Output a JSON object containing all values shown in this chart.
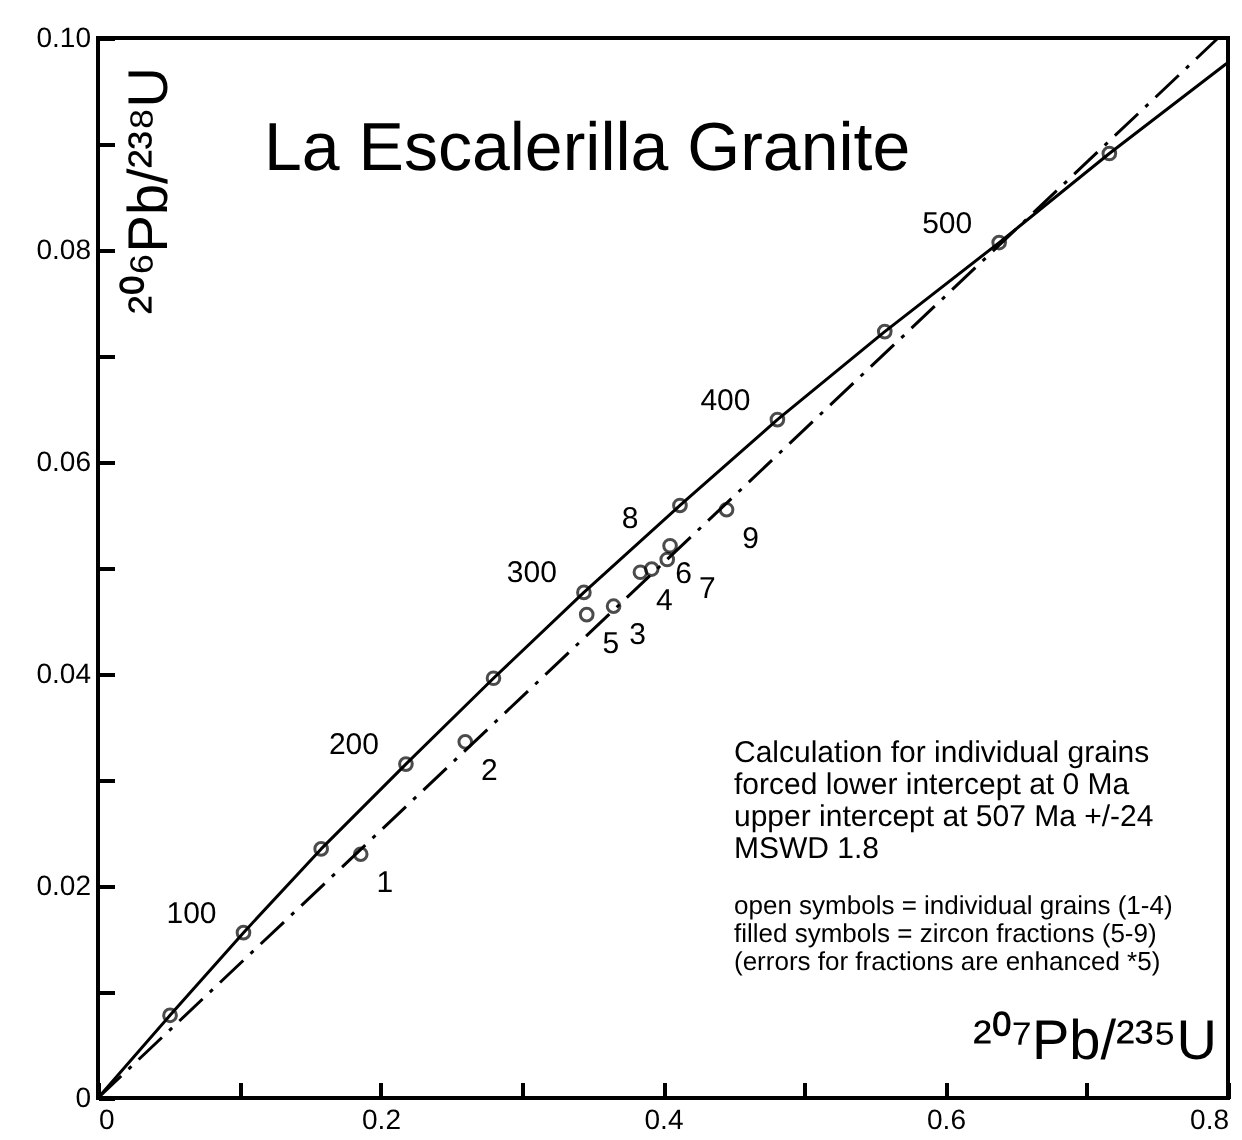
{
  "chart_data": {
    "type": "line",
    "title": "La Escalerilla Granite",
    "xlabel": "²⁰⁷Pb/²³⁵U",
    "ylabel": "²⁰⁶Pb/²³⁸U",
    "xlim": [
      0,
      0.8
    ],
    "ylim": [
      0,
      0.1
    ],
    "xticks": [
      0,
      {
        "value": 0.1,
        "label": null
      },
      0.2,
      {
        "value": 0.3,
        "label": null
      },
      0.4,
      {
        "value": 0.5,
        "label": null
      },
      0.6,
      {
        "value": 0.7,
        "label": null
      },
      0.8
    ],
    "yticks": [
      0,
      {
        "value": 0.01,
        "label": null
      },
      0.02,
      {
        "value": 0.03,
        "label": null
      },
      0.04,
      {
        "value": 0.05,
        "label": null
      },
      0.06,
      {
        "value": 0.07,
        "label": null
      },
      0.08,
      {
        "value": 0.09,
        "label": null
      },
      {
        "value": 0.1,
        "label": "0.10"
      }
    ],
    "grid": false,
    "series": [
      {
        "color": "#000000",
        "line_style": "solid",
        "x": [
          0,
          0.051,
          0.103,
          0.158,
          0.218,
          0.28,
          0.344,
          0.412,
          0.481,
          0.557,
          0.638,
          0.716,
          0.799
        ],
        "values": [
          0,
          0.0078,
          0.0156,
          0.0235,
          0.0315,
          0.0396,
          0.0477,
          0.0559,
          0.064,
          0.0723,
          0.0807,
          0.0891,
          0.0976
        ]
      },
      {
        "type": "scatter",
        "marker": "circle",
        "color": "#000000",
        "x": [
          0.051,
          0.103,
          0.158,
          0.218,
          0.28,
          0.344,
          0.412,
          0.481,
          0.557,
          0.638,
          0.716
        ],
        "values": [
          0.0078,
          0.0156,
          0.0235,
          0.0315,
          0.0396,
          0.0477,
          0.0559,
          0.064,
          0.0723,
          0.0807,
          0.0891
        ]
      },
      {
        "color": "#000000",
        "line_style": "dashed",
        "x": [
          0,
          0.793
        ],
        "values": [
          0,
          0.1
        ]
      },
      {
        "type": "scatter",
        "marker": "circle",
        "color": "#000000",
        "x": [
          0.186,
          0.26,
          0.365,
          0.384
        ],
        "values": [
          0.023,
          0.0336,
          0.0464,
          0.0496
        ]
      },
      {
        "type": "scatter",
        "marker": "circle",
        "color": "#000000",
        "x": [
          0.346,
          0.392,
          0.403,
          0.405,
          0.445
        ],
        "values": [
          0.0456,
          0.0499,
          0.0508,
          0.0521,
          0.0555
        ]
      }
    ],
    "annotations": [
      {
        "text": "100",
        "x": 0.103,
        "y": 0.0156
      },
      {
        "text": "200",
        "x": 0.218,
        "y": 0.0315
      },
      {
        "text": "300",
        "x": 0.344,
        "y": 0.0477
      },
      {
        "text": "400",
        "x": 0.481,
        "y": 0.064
      },
      {
        "text": "500",
        "x": 0.638,
        "y": 0.0807
      },
      {
        "text": "1",
        "x": 0.186,
        "y": 0.023
      },
      {
        "text": "2",
        "x": 0.26,
        "y": 0.0336
      },
      {
        "text": "3",
        "x": 0.365,
        "y": 0.0464
      },
      {
        "text": "4",
        "x": 0.384,
        "y": 0.0496
      },
      {
        "text": "5",
        "x": 0.346,
        "y": 0.0456
      },
      {
        "text": "6",
        "x": 0.392,
        "y": 0.0499
      },
      {
        "text": "7",
        "x": 0.403,
        "y": 0.0508
      },
      {
        "text": "8",
        "x": 0.405,
        "y": 0.0521
      },
      {
        "text": "9",
        "x": 0.445,
        "y": 0.0555
      },
      "Calculation for individual grains\nforced lower intercept at 0 Ma\nupper intercept at 507 Ma +/-24\nMSWD 1.8",
      "open symbols = individual grains (1-4)\nfilled symbols = zircon fractions (5-9)\n(errors for fractions are enhanced *5)"
    ]
  }
}
